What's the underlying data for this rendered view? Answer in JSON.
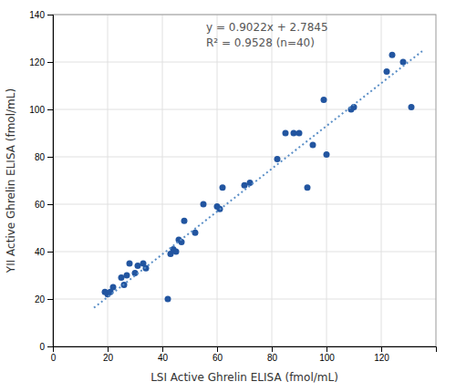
{
  "chart_data": {
    "type": "scatter",
    "xlabel": "LSI  Active Ghrelin ELISA (fmol/mL)",
    "ylabel": "YII  Active Ghrelin ELISA (fmol/mL)",
    "series": [
      {
        "type": "scatter",
        "color": "#2255a0",
        "x": [
          19,
          20,
          21,
          22,
          25,
          26,
          27,
          28,
          30,
          31,
          33,
          34,
          42,
          43,
          44,
          45,
          46,
          47,
          48,
          52,
          55,
          60,
          61,
          62,
          70,
          72,
          82,
          85,
          88,
          90,
          93,
          95,
          99,
          100,
          109,
          110,
          122,
          124,
          128,
          131
        ],
        "values": [
          23,
          22,
          23,
          25,
          29,
          26,
          30,
          35,
          31,
          34,
          35,
          33,
          20,
          39,
          41,
          40,
          45,
          44,
          53,
          48,
          60,
          59,
          58,
          67,
          68,
          69,
          79,
          90,
          90,
          90,
          67,
          85,
          104,
          81,
          100,
          101,
          116,
          123,
          120,
          101
        ]
      },
      {
        "type": "line",
        "color": "#5b8fc7",
        "line_style": "dotted",
        "x": [
          15,
          135
        ],
        "values": [
          16.3175,
          124.5815
        ]
      }
    ],
    "annotations": [
      "y = 0.9022x + 2.7845",
      "R² = 0.9528   (n=40)"
    ],
    "xlim": [
      0,
      140
    ],
    "ylim": [
      0,
      140
    ],
    "xticks": [
      0,
      20,
      40,
      60,
      80,
      100,
      120
    ],
    "yticks": [
      0,
      20,
      40,
      60,
      80,
      100,
      120,
      140
    ],
    "grid": true
  }
}
